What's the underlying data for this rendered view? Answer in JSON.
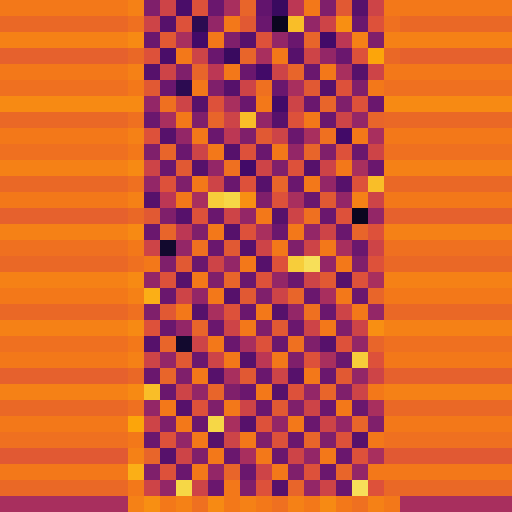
{
  "chart_data": {
    "type": "heatmap",
    "tick_labels": false,
    "zlim": [
      0,
      1
    ],
    "cells": [
      [
        0.7,
        0.7,
        0.7,
        0.7,
        0.7,
        0.7,
        0.7,
        0.7,
        0.72,
        0.35,
        0.55,
        0.22,
        0.6,
        0.3,
        0.45,
        0.65,
        0.28,
        0.18,
        0.5,
        0.7,
        0.35,
        0.62,
        0.25,
        0.55,
        0.7,
        0.7,
        0.7,
        0.7,
        0.7,
        0.7,
        0.7,
        0.7
      ],
      [
        0.66,
        0.66,
        0.66,
        0.66,
        0.66,
        0.66,
        0.66,
        0.66,
        0.68,
        0.55,
        0.25,
        0.6,
        0.15,
        0.4,
        0.7,
        0.62,
        0.3,
        0.05,
        0.85,
        0.4,
        0.55,
        0.75,
        0.3,
        0.6,
        0.68,
        0.66,
        0.66,
        0.66,
        0.66,
        0.66,
        0.66,
        0.66
      ],
      [
        0.72,
        0.72,
        0.72,
        0.72,
        0.72,
        0.72,
        0.72,
        0.72,
        0.74,
        0.3,
        0.62,
        0.45,
        0.2,
        0.7,
        0.35,
        0.25,
        0.6,
        0.4,
        0.3,
        0.65,
        0.2,
        0.5,
        0.72,
        0.35,
        0.72,
        0.72,
        0.72,
        0.72,
        0.72,
        0.72,
        0.72,
        0.72
      ],
      [
        0.64,
        0.64,
        0.64,
        0.64,
        0.64,
        0.64,
        0.64,
        0.64,
        0.66,
        0.6,
        0.22,
        0.7,
        0.55,
        0.3,
        0.18,
        0.65,
        0.45,
        0.7,
        0.25,
        0.55,
        0.4,
        0.3,
        0.6,
        0.8,
        0.66,
        0.64,
        0.64,
        0.64,
        0.64,
        0.64,
        0.64,
        0.64
      ],
      [
        0.7,
        0.7,
        0.7,
        0.7,
        0.7,
        0.7,
        0.7,
        0.7,
        0.72,
        0.25,
        0.55,
        0.35,
        0.65,
        0.5,
        0.7,
        0.3,
        0.2,
        0.55,
        0.65,
        0.3,
        0.7,
        0.45,
        0.25,
        0.55,
        0.7,
        0.7,
        0.7,
        0.7,
        0.7,
        0.7,
        0.7,
        0.7
      ],
      [
        0.68,
        0.68,
        0.68,
        0.68,
        0.68,
        0.68,
        0.68,
        0.68,
        0.7,
        0.62,
        0.3,
        0.15,
        0.7,
        0.35,
        0.25,
        0.55,
        0.68,
        0.3,
        0.45,
        0.62,
        0.25,
        0.6,
        0.35,
        0.7,
        0.68,
        0.68,
        0.68,
        0.68,
        0.68,
        0.68,
        0.68,
        0.68
      ],
      [
        0.74,
        0.74,
        0.74,
        0.74,
        0.74,
        0.74,
        0.74,
        0.74,
        0.74,
        0.4,
        0.68,
        0.55,
        0.25,
        0.6,
        0.45,
        0.3,
        0.7,
        0.2,
        0.55,
        0.3,
        0.65,
        0.35,
        0.6,
        0.3,
        0.74,
        0.74,
        0.74,
        0.74,
        0.74,
        0.74,
        0.74,
        0.74
      ],
      [
        0.66,
        0.66,
        0.66,
        0.66,
        0.66,
        0.66,
        0.66,
        0.66,
        0.68,
        0.3,
        0.45,
        0.7,
        0.35,
        0.65,
        0.55,
        0.85,
        0.4,
        0.25,
        0.6,
        0.7,
        0.3,
        0.55,
        0.4,
        0.65,
        0.66,
        0.66,
        0.66,
        0.66,
        0.66,
        0.66,
        0.66,
        0.66
      ],
      [
        0.7,
        0.7,
        0.7,
        0.7,
        0.7,
        0.7,
        0.7,
        0.7,
        0.72,
        0.6,
        0.25,
        0.4,
        0.7,
        0.3,
        0.5,
        0.35,
        0.62,
        0.55,
        0.3,
        0.45,
        0.68,
        0.2,
        0.7,
        0.45,
        0.7,
        0.7,
        0.7,
        0.7,
        0.7,
        0.7,
        0.7,
        0.7
      ],
      [
        0.68,
        0.68,
        0.68,
        0.68,
        0.68,
        0.68,
        0.68,
        0.68,
        0.7,
        0.35,
        0.65,
        0.3,
        0.55,
        0.7,
        0.25,
        0.6,
        0.3,
        0.7,
        0.4,
        0.65,
        0.35,
        0.6,
        0.3,
        0.55,
        0.68,
        0.68,
        0.68,
        0.68,
        0.68,
        0.68,
        0.68,
        0.68
      ],
      [
        0.72,
        0.72,
        0.72,
        0.72,
        0.72,
        0.72,
        0.72,
        0.72,
        0.74,
        0.55,
        0.3,
        0.62,
        0.25,
        0.4,
        0.68,
        0.2,
        0.55,
        0.35,
        0.6,
        0.25,
        0.55,
        0.7,
        0.45,
        0.3,
        0.72,
        0.72,
        0.72,
        0.72,
        0.72,
        0.72,
        0.72,
        0.72
      ],
      [
        0.66,
        0.66,
        0.66,
        0.66,
        0.66,
        0.66,
        0.66,
        0.66,
        0.68,
        0.4,
        0.6,
        0.35,
        0.7,
        0.55,
        0.3,
        0.6,
        0.25,
        0.65,
        0.3,
        0.7,
        0.4,
        0.25,
        0.6,
        0.85,
        0.66,
        0.66,
        0.66,
        0.66,
        0.66,
        0.66,
        0.66,
        0.66
      ],
      [
        0.7,
        0.7,
        0.7,
        0.7,
        0.7,
        0.7,
        0.7,
        0.7,
        0.72,
        0.25,
        0.5,
        0.7,
        0.45,
        0.88,
        0.9,
        0.75,
        0.35,
        0.6,
        0.45,
        0.3,
        0.62,
        0.4,
        0.72,
        0.55,
        0.7,
        0.7,
        0.7,
        0.7,
        0.7,
        0.7,
        0.7,
        0.7
      ],
      [
        0.64,
        0.64,
        0.64,
        0.64,
        0.64,
        0.64,
        0.64,
        0.64,
        0.66,
        0.62,
        0.35,
        0.25,
        0.6,
        0.3,
        0.55,
        0.4,
        0.7,
        0.25,
        0.55,
        0.68,
        0.3,
        0.6,
        0.05,
        0.4,
        0.64,
        0.64,
        0.64,
        0.64,
        0.64,
        0.64,
        0.64,
        0.64
      ],
      [
        0.72,
        0.72,
        0.72,
        0.72,
        0.72,
        0.72,
        0.72,
        0.72,
        0.74,
        0.3,
        0.65,
        0.5,
        0.35,
        0.7,
        0.25,
        0.6,
        0.45,
        0.3,
        0.7,
        0.4,
        0.55,
        0.3,
        0.65,
        0.6,
        0.72,
        0.72,
        0.72,
        0.72,
        0.72,
        0.72,
        0.72,
        0.72
      ],
      [
        0.68,
        0.68,
        0.68,
        0.68,
        0.68,
        0.68,
        0.68,
        0.68,
        0.7,
        0.55,
        0.08,
        0.4,
        0.68,
        0.3,
        0.62,
        0.25,
        0.55,
        0.7,
        0.35,
        0.55,
        0.7,
        0.45,
        0.3,
        0.55,
        0.68,
        0.68,
        0.68,
        0.68,
        0.68,
        0.68,
        0.68,
        0.68
      ],
      [
        0.66,
        0.66,
        0.66,
        0.66,
        0.66,
        0.66,
        0.66,
        0.66,
        0.68,
        0.7,
        0.35,
        0.62,
        0.3,
        0.55,
        0.4,
        0.7,
        0.25,
        0.6,
        0.88,
        0.92,
        0.4,
        0.7,
        0.35,
        0.6,
        0.66,
        0.66,
        0.66,
        0.66,
        0.66,
        0.66,
        0.66,
        0.66
      ],
      [
        0.72,
        0.72,
        0.72,
        0.72,
        0.72,
        0.72,
        0.72,
        0.72,
        0.74,
        0.4,
        0.6,
        0.25,
        0.7,
        0.35,
        0.65,
        0.3,
        0.6,
        0.4,
        0.3,
        0.55,
        0.62,
        0.25,
        0.6,
        0.45,
        0.72,
        0.72,
        0.72,
        0.72,
        0.72,
        0.72,
        0.72,
        0.72
      ],
      [
        0.7,
        0.7,
        0.7,
        0.7,
        0.7,
        0.7,
        0.7,
        0.7,
        0.72,
        0.82,
        0.3,
        0.55,
        0.4,
        0.7,
        0.25,
        0.62,
        0.35,
        0.55,
        0.65,
        0.3,
        0.45,
        0.7,
        0.3,
        0.65,
        0.7,
        0.7,
        0.7,
        0.7,
        0.7,
        0.7,
        0.7,
        0.7
      ],
      [
        0.66,
        0.66,
        0.66,
        0.66,
        0.66,
        0.66,
        0.66,
        0.66,
        0.68,
        0.35,
        0.62,
        0.7,
        0.25,
        0.45,
        0.6,
        0.3,
        0.7,
        0.25,
        0.4,
        0.68,
        0.3,
        0.55,
        0.7,
        0.4,
        0.66,
        0.66,
        0.66,
        0.66,
        0.66,
        0.66,
        0.66,
        0.66
      ],
      [
        0.72,
        0.72,
        0.72,
        0.72,
        0.72,
        0.72,
        0.72,
        0.72,
        0.74,
        0.6,
        0.3,
        0.4,
        0.65,
        0.3,
        0.55,
        0.7,
        0.35,
        0.62,
        0.3,
        0.55,
        0.7,
        0.35,
        0.55,
        0.75,
        0.72,
        0.72,
        0.72,
        0.72,
        0.72,
        0.72,
        0.72,
        0.72
      ],
      [
        0.68,
        0.68,
        0.68,
        0.68,
        0.68,
        0.68,
        0.68,
        0.68,
        0.7,
        0.25,
        0.65,
        0.08,
        0.55,
        0.7,
        0.3,
        0.45,
        0.6,
        0.3,
        0.68,
        0.35,
        0.25,
        0.6,
        0.4,
        0.65,
        0.68,
        0.68,
        0.68,
        0.68,
        0.68,
        0.68,
        0.68,
        0.68
      ],
      [
        0.7,
        0.7,
        0.7,
        0.7,
        0.7,
        0.7,
        0.7,
        0.7,
        0.72,
        0.55,
        0.4,
        0.62,
        0.3,
        0.55,
        0.7,
        0.25,
        0.5,
        0.7,
        0.35,
        0.6,
        0.45,
        0.3,
        0.88,
        0.6,
        0.7,
        0.7,
        0.7,
        0.7,
        0.7,
        0.7,
        0.7,
        0.7
      ],
      [
        0.64,
        0.64,
        0.64,
        0.64,
        0.64,
        0.64,
        0.64,
        0.64,
        0.66,
        0.3,
        0.65,
        0.35,
        0.7,
        0.25,
        0.45,
        0.62,
        0.3,
        0.55,
        0.25,
        0.7,
        0.3,
        0.62,
        0.4,
        0.55,
        0.64,
        0.64,
        0.64,
        0.64,
        0.64,
        0.64,
        0.64,
        0.64
      ],
      [
        0.72,
        0.72,
        0.72,
        0.72,
        0.72,
        0.72,
        0.72,
        0.72,
        0.74,
        0.85,
        0.3,
        0.55,
        0.4,
        0.65,
        0.35,
        0.3,
        0.7,
        0.25,
        0.6,
        0.4,
        0.65,
        0.35,
        0.55,
        0.7,
        0.72,
        0.72,
        0.72,
        0.72,
        0.72,
        0.72,
        0.72,
        0.72
      ],
      [
        0.66,
        0.66,
        0.66,
        0.66,
        0.66,
        0.66,
        0.66,
        0.66,
        0.68,
        0.4,
        0.7,
        0.25,
        0.6,
        0.35,
        0.7,
        0.55,
        0.3,
        0.62,
        0.35,
        0.55,
        0.3,
        0.7,
        0.3,
        0.45,
        0.66,
        0.66,
        0.66,
        0.66,
        0.66,
        0.66,
        0.66,
        0.66
      ],
      [
        0.7,
        0.7,
        0.7,
        0.7,
        0.7,
        0.7,
        0.7,
        0.7,
        0.8,
        0.55,
        0.35,
        0.7,
        0.3,
        0.9,
        0.45,
        0.25,
        0.6,
        0.4,
        0.7,
        0.3,
        0.55,
        0.4,
        0.65,
        0.35,
        0.7,
        0.7,
        0.7,
        0.7,
        0.7,
        0.7,
        0.7,
        0.7
      ],
      [
        0.68,
        0.68,
        0.68,
        0.68,
        0.68,
        0.68,
        0.68,
        0.68,
        0.7,
        0.3,
        0.6,
        0.4,
        0.7,
        0.25,
        0.55,
        0.7,
        0.35,
        0.6,
        0.3,
        0.65,
        0.35,
        0.6,
        0.25,
        0.7,
        0.68,
        0.68,
        0.68,
        0.68,
        0.68,
        0.68,
        0.68,
        0.68
      ],
      [
        0.62,
        0.62,
        0.62,
        0.62,
        0.62,
        0.62,
        0.62,
        0.62,
        0.72,
        0.65,
        0.25,
        0.55,
        0.35,
        0.7,
        0.3,
        0.45,
        0.7,
        0.3,
        0.55,
        0.4,
        0.7,
        0.3,
        0.6,
        0.45,
        0.62,
        0.62,
        0.62,
        0.62,
        0.62,
        0.62,
        0.62,
        0.62
      ],
      [
        0.7,
        0.7,
        0.7,
        0.7,
        0.7,
        0.7,
        0.7,
        0.7,
        0.82,
        0.35,
        0.6,
        0.3,
        0.7,
        0.4,
        0.65,
        0.3,
        0.55,
        0.7,
        0.35,
        0.6,
        0.3,
        0.65,
        0.4,
        0.7,
        0.7,
        0.7,
        0.7,
        0.7,
        0.7,
        0.7,
        0.7,
        0.7
      ],
      [
        0.66,
        0.66,
        0.66,
        0.66,
        0.66,
        0.66,
        0.66,
        0.66,
        0.7,
        0.55,
        0.4,
        0.9,
        0.55,
        0.3,
        0.7,
        0.35,
        0.6,
        0.25,
        0.65,
        0.4,
        0.55,
        0.3,
        0.92,
        0.6,
        0.66,
        0.66,
        0.66,
        0.66,
        0.66,
        0.66,
        0.66,
        0.66
      ],
      [
        0.45,
        0.45,
        0.45,
        0.45,
        0.45,
        0.45,
        0.45,
        0.45,
        0.72,
        0.75,
        0.7,
        0.72,
        0.68,
        0.74,
        0.7,
        0.72,
        0.7,
        0.68,
        0.72,
        0.7,
        0.74,
        0.7,
        0.68,
        0.72,
        0.7,
        0.45,
        0.45,
        0.45,
        0.45,
        0.45,
        0.45,
        0.45
      ]
    ]
  }
}
